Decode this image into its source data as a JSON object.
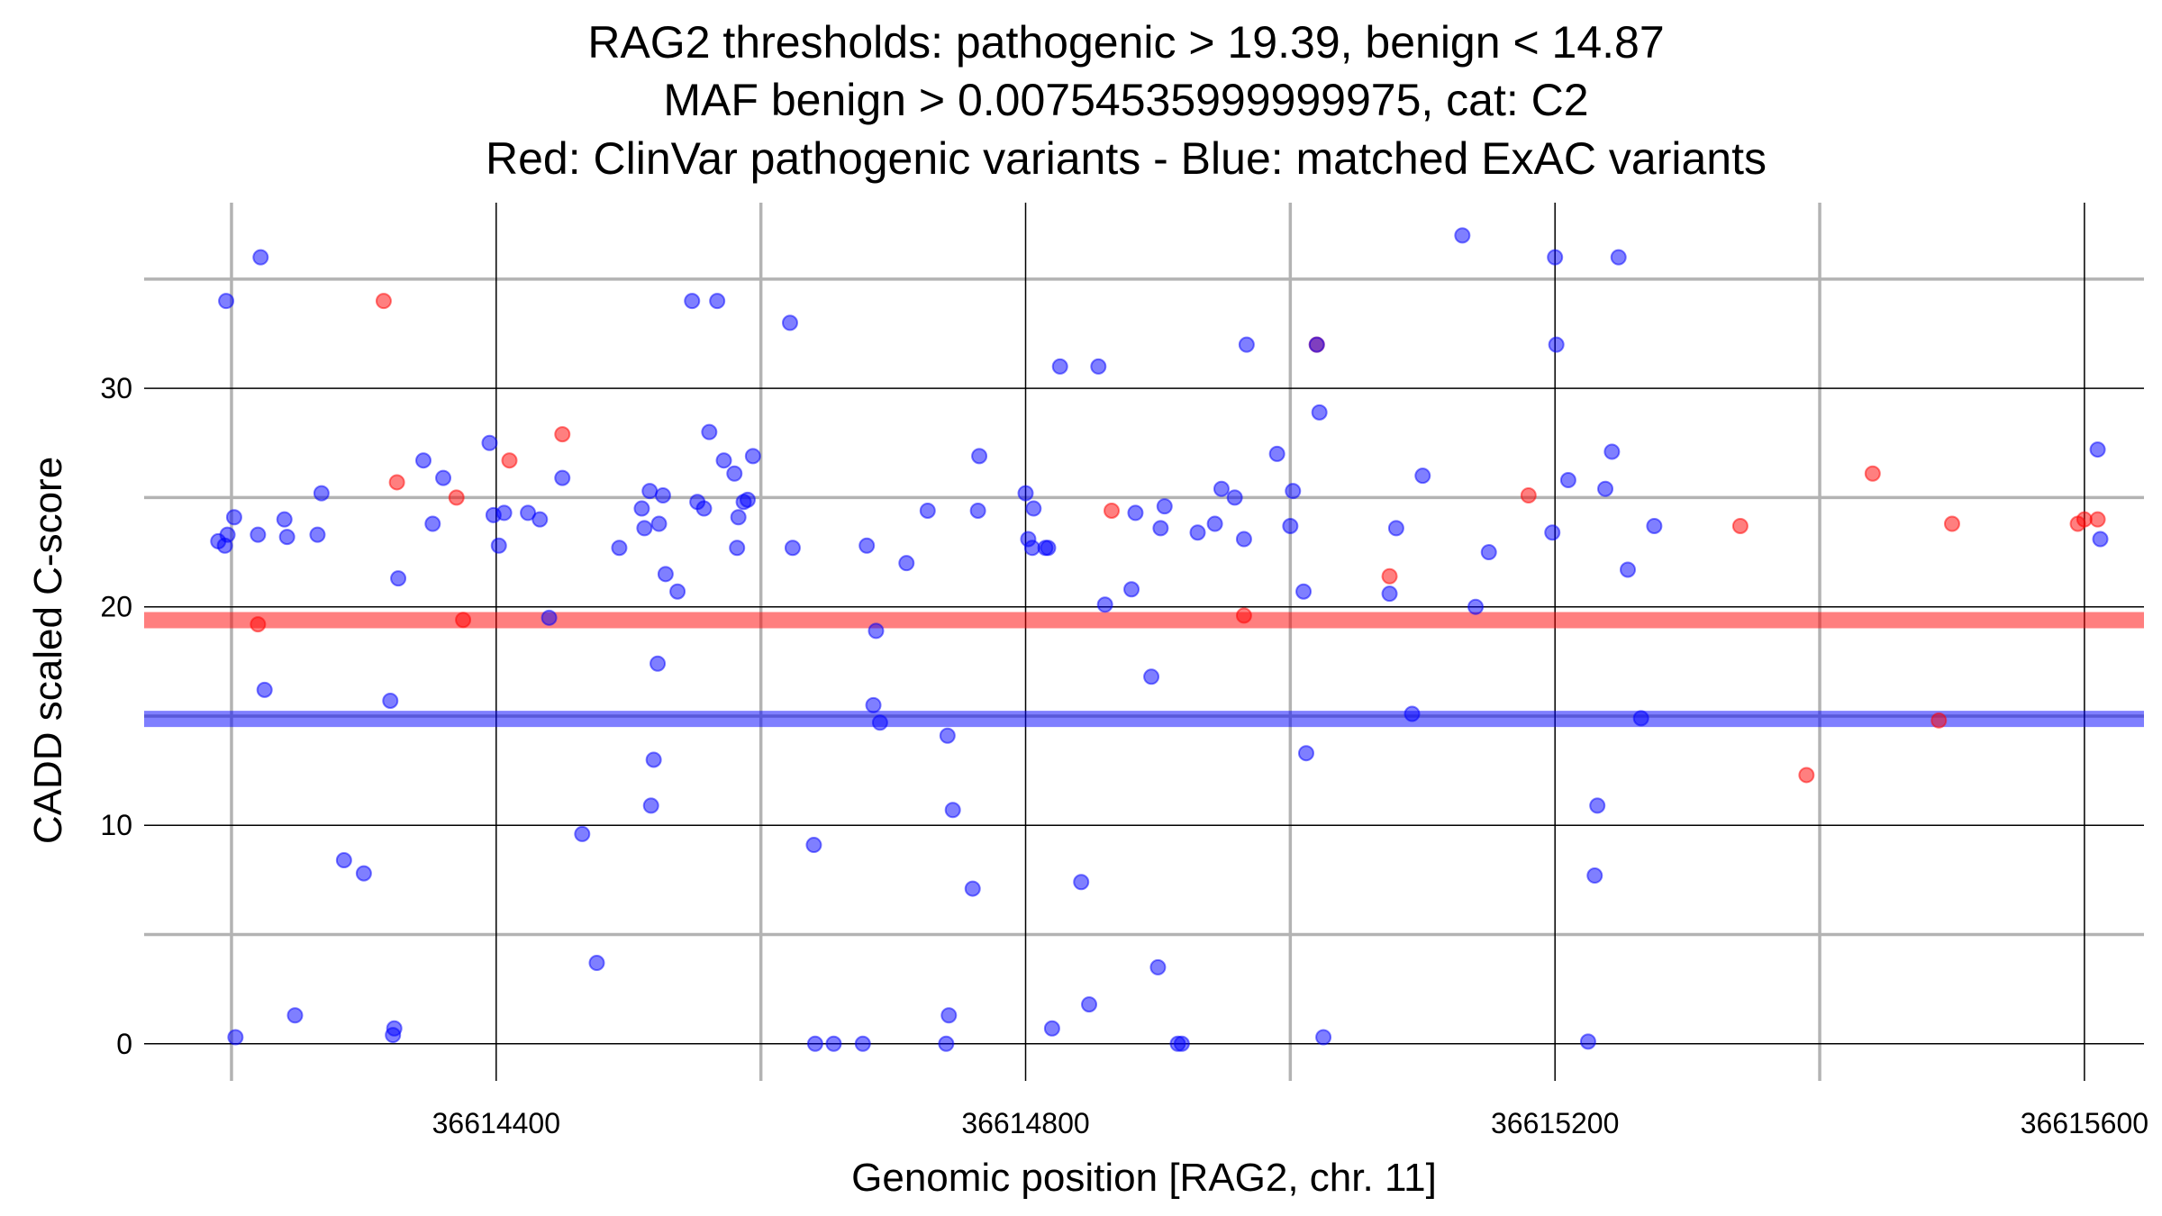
{
  "chart_data": {
    "type": "scatter",
    "title_lines": [
      "RAG2 thresholds: pathogenic > 19.39, benign < 14.87",
      "MAF benign > 0.00754535999999975, cat: C2",
      "Red: ClinVar pathogenic variants - Blue: matched ExAC variants"
    ],
    "xlabel": "Genomic position [RAG2, chr. 11]",
    "ylabel": "CADD scaled C-score",
    "xlim": [
      36614134,
      36615645
    ],
    "ylim": [
      -1.7,
      38.5
    ],
    "x_ticks": [
      36614400,
      36614800,
      36615200,
      36615600
    ],
    "x_minor_ticks": [
      36614200,
      36614600,
      36615000,
      36615400
    ],
    "y_ticks": [
      0,
      10,
      20,
      30
    ],
    "y_minor_ticks": [
      5,
      15,
      25,
      35
    ],
    "thresholds": [
      {
        "name": "pathogenic threshold",
        "value": 19.39,
        "color": "#ff0000"
      },
      {
        "name": "benign threshold",
        "value": 14.87,
        "color": "#0000ff"
      }
    ],
    "colors": {
      "pathogenic": "#ff0000",
      "benign": "#0000ff"
    },
    "series": [
      {
        "name": "ClinVar pathogenic",
        "color": "#ff0000",
        "points": [
          [
            36614220,
            19.2
          ],
          [
            36614315,
            34
          ],
          [
            36614370,
            25
          ],
          [
            36614375,
            19.4
          ],
          [
            36614325,
            25.7
          ],
          [
            36614410,
            26.7
          ],
          [
            36614450,
            27.9
          ],
          [
            36614965,
            19.6
          ],
          [
            36614865,
            24.4
          ],
          [
            36615020,
            32
          ],
          [
            36615075,
            21.4
          ],
          [
            36615180,
            25.1
          ],
          [
            36615340,
            23.7
          ],
          [
            36615390,
            12.3
          ],
          [
            36615440,
            26.1
          ],
          [
            36615490,
            14.8
          ],
          [
            36615500,
            23.8
          ],
          [
            36615595,
            23.8
          ],
          [
            36615600,
            24
          ],
          [
            36615610,
            24
          ]
        ]
      },
      {
        "name": "ExAC matched",
        "color": "#0000ff",
        "points": [
          [
            36614190,
            23
          ],
          [
            36614195,
            22.8
          ],
          [
            36614196,
            34
          ],
          [
            36614197,
            23.3
          ],
          [
            36614202,
            24.1
          ],
          [
            36614203,
            0.3
          ],
          [
            36614220,
            23.3
          ],
          [
            36614222,
            36
          ],
          [
            36614225,
            16.2
          ],
          [
            36614240,
            24
          ],
          [
            36614242,
            23.2
          ],
          [
            36614248,
            1.3
          ],
          [
            36614265,
            23.3
          ],
          [
            36614268,
            25.2
          ],
          [
            36614285,
            8.4
          ],
          [
            36614300,
            7.8
          ],
          [
            36614320,
            15.7
          ],
          [
            36614322,
            0.4
          ],
          [
            36614323,
            0.7
          ],
          [
            36614326,
            21.3
          ],
          [
            36614345,
            26.7
          ],
          [
            36614352,
            23.8
          ],
          [
            36614360,
            25.9
          ],
          [
            36614395,
            27.5
          ],
          [
            36614398,
            24.2
          ],
          [
            36614402,
            22.8
          ],
          [
            36614406,
            24.3
          ],
          [
            36614424,
            24.3
          ],
          [
            36614433,
            24
          ],
          [
            36614440,
            19.5
          ],
          [
            36614450,
            25.9
          ],
          [
            36614465,
            9.6
          ],
          [
            36614476,
            3.7
          ],
          [
            36614493,
            22.7
          ],
          [
            36614510,
            24.5
          ],
          [
            36614512,
            23.6
          ],
          [
            36614516,
            25.3
          ],
          [
            36614517,
            10.9
          ],
          [
            36614519,
            13
          ],
          [
            36614522,
            17.4
          ],
          [
            36614523,
            23.8
          ],
          [
            36614526,
            25.1
          ],
          [
            36614528,
            21.5
          ],
          [
            36614537,
            20.7
          ],
          [
            36614548,
            34
          ],
          [
            36614552,
            24.8
          ],
          [
            36614557,
            24.5
          ],
          [
            36614561,
            28
          ],
          [
            36614567,
            34
          ],
          [
            36614572,
            26.7
          ],
          [
            36614580,
            26.1
          ],
          [
            36614582,
            22.7
          ],
          [
            36614583,
            24.1
          ],
          [
            36614587,
            24.8
          ],
          [
            36614590,
            24.9
          ],
          [
            36614594,
            26.9
          ],
          [
            36614622,
            33
          ],
          [
            36614624,
            22.7
          ],
          [
            36614640,
            9.1
          ],
          [
            36614641,
            0
          ],
          [
            36614655,
            0
          ],
          [
            36614677,
            0
          ],
          [
            36614680,
            22.8
          ],
          [
            36614685,
            15.5
          ],
          [
            36614687,
            18.9
          ],
          [
            36614690,
            14.7
          ],
          [
            36614710,
            22
          ],
          [
            36614726,
            24.4
          ],
          [
            36614740,
            0
          ],
          [
            36614741,
            14.1
          ],
          [
            36614742,
            1.3
          ],
          [
            36614745,
            10.7
          ],
          [
            36614760,
            7.1
          ],
          [
            36614764,
            24.4
          ],
          [
            36614765,
            26.9
          ],
          [
            36614800,
            25.2
          ],
          [
            36614802,
            23.1
          ],
          [
            36614805,
            22.7
          ],
          [
            36614806,
            24.5
          ],
          [
            36614815,
            22.7
          ],
          [
            36614817,
            22.7
          ],
          [
            36614820,
            0.7
          ],
          [
            36614826,
            31
          ],
          [
            36614842,
            7.4
          ],
          [
            36614848,
            1.8
          ],
          [
            36614855,
            31
          ],
          [
            36614860,
            20.1
          ],
          [
            36614880,
            20.8
          ],
          [
            36614883,
            24.3
          ],
          [
            36614895,
            16.8
          ],
          [
            36614900,
            3.5
          ],
          [
            36614902,
            23.6
          ],
          [
            36614905,
            24.6
          ],
          [
            36614915,
            0
          ],
          [
            36614918,
            0
          ],
          [
            36614930,
            23.4
          ],
          [
            36614943,
            23.8
          ],
          [
            36614948,
            25.4
          ],
          [
            36614958,
            25
          ],
          [
            36614965,
            23.1
          ],
          [
            36614967,
            32
          ],
          [
            36614990,
            27
          ],
          [
            36615000,
            23.7
          ],
          [
            36615002,
            25.3
          ],
          [
            36615020,
            32
          ],
          [
            36615022,
            28.9
          ],
          [
            36615025,
            0.3
          ],
          [
            36615010,
            20.7
          ],
          [
            36615012,
            13.3
          ],
          [
            36615075,
            20.6
          ],
          [
            36615080,
            23.6
          ],
          [
            36615092,
            15.1
          ],
          [
            36615100,
            26
          ],
          [
            36615130,
            37
          ],
          [
            36615140,
            20
          ],
          [
            36615150,
            22.5
          ],
          [
            36615198,
            23.4
          ],
          [
            36615200,
            36
          ],
          [
            36615201,
            32
          ],
          [
            36615210,
            25.8
          ],
          [
            36615225,
            0.1
          ],
          [
            36615230,
            7.7
          ],
          [
            36615232,
            10.9
          ],
          [
            36615238,
            25.4
          ],
          [
            36615243,
            27.1
          ],
          [
            36615248,
            36
          ],
          [
            36615255,
            21.7
          ],
          [
            36615265,
            14.9
          ],
          [
            36615275,
            23.7
          ],
          [
            36615610,
            27.2
          ],
          [
            36615612,
            23.1
          ]
        ]
      }
    ]
  }
}
